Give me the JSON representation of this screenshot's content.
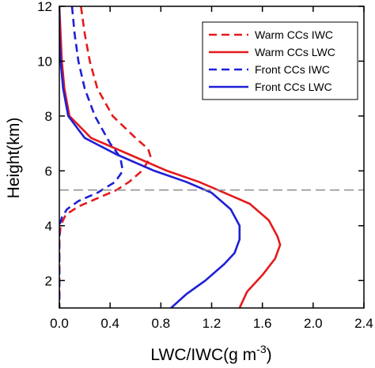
{
  "chart_data": {
    "type": "line",
    "xlabel": {
      "main": "LWC/IWC(g m",
      "sup": "-3",
      "close": ")"
    },
    "ylabel": "Height(km)",
    "xlim": [
      0,
      2.4
    ],
    "ylim": [
      1,
      12
    ],
    "x_ticks": [
      0.0,
      0.4,
      0.8,
      1.2,
      1.6,
      2.0,
      2.4
    ],
    "x_tick_labels": [
      "0.0",
      "0.4",
      "0.8",
      "1.2",
      "1.6",
      "2.0",
      "2.4"
    ],
    "y_ticks": [
      2,
      4,
      6,
      8,
      10,
      12
    ],
    "y_tick_labels": [
      "2",
      "4",
      "6",
      "8",
      "10",
      "12"
    ],
    "reference_line": {
      "y": 5.3,
      "style": "dashed",
      "color": "#8c8c8c"
    },
    "legend_position": "top-right",
    "series": [
      {
        "name": "Warm CCs IWC",
        "color": "#e41a1c",
        "style": "dashed",
        "points": [
          [
            0.17,
            12.0
          ],
          [
            0.2,
            11.0
          ],
          [
            0.24,
            10.0
          ],
          [
            0.3,
            9.0
          ],
          [
            0.42,
            8.0
          ],
          [
            0.6,
            7.2
          ],
          [
            0.7,
            6.8
          ],
          [
            0.72,
            6.5
          ],
          [
            0.65,
            6.0
          ],
          [
            0.55,
            5.6
          ],
          [
            0.45,
            5.3
          ],
          [
            0.3,
            5.0
          ],
          [
            0.15,
            4.7
          ],
          [
            0.05,
            4.4
          ],
          [
            0.01,
            4.0
          ],
          [
            0.0,
            3.5
          ],
          [
            0.0,
            1.0
          ]
        ]
      },
      {
        "name": "Warm CCs LWC",
        "color": "#e41a1c",
        "style": "solid",
        "points": [
          [
            0.0,
            12.0
          ],
          [
            0.01,
            11.0
          ],
          [
            0.02,
            10.0
          ],
          [
            0.04,
            9.0
          ],
          [
            0.08,
            8.0
          ],
          [
            0.25,
            7.2
          ],
          [
            0.55,
            6.6
          ],
          [
            0.85,
            6.0
          ],
          [
            1.1,
            5.6
          ],
          [
            1.3,
            5.2
          ],
          [
            1.5,
            4.8
          ],
          [
            1.65,
            4.2
          ],
          [
            1.72,
            3.6
          ],
          [
            1.74,
            3.3
          ],
          [
            1.7,
            2.8
          ],
          [
            1.6,
            2.2
          ],
          [
            1.48,
            1.6
          ],
          [
            1.42,
            1.0
          ]
        ]
      },
      {
        "name": "Front CCs IWC",
        "color": "#1f1fd6",
        "style": "dashed",
        "points": [
          [
            0.1,
            12.0
          ],
          [
            0.12,
            11.0
          ],
          [
            0.15,
            10.0
          ],
          [
            0.2,
            9.0
          ],
          [
            0.28,
            8.0
          ],
          [
            0.4,
            7.0
          ],
          [
            0.48,
            6.5
          ],
          [
            0.5,
            6.0
          ],
          [
            0.44,
            5.6
          ],
          [
            0.3,
            5.2
          ],
          [
            0.15,
            4.9
          ],
          [
            0.06,
            4.6
          ],
          [
            0.02,
            4.3
          ],
          [
            0.0,
            4.0
          ],
          [
            0.0,
            1.0
          ]
        ]
      },
      {
        "name": "Front CCs LWC",
        "color": "#1f1fd6",
        "style": "solid",
        "points": [
          [
            0.0,
            12.0
          ],
          [
            0.0,
            11.0
          ],
          [
            0.01,
            10.0
          ],
          [
            0.03,
            9.0
          ],
          [
            0.07,
            8.0
          ],
          [
            0.2,
            7.2
          ],
          [
            0.45,
            6.6
          ],
          [
            0.75,
            6.0
          ],
          [
            1.0,
            5.6
          ],
          [
            1.2,
            5.2
          ],
          [
            1.35,
            4.6
          ],
          [
            1.42,
            4.0
          ],
          [
            1.42,
            3.5
          ],
          [
            1.38,
            3.0
          ],
          [
            1.3,
            2.6
          ],
          [
            1.15,
            2.0
          ],
          [
            1.0,
            1.5
          ],
          [
            0.88,
            1.0
          ]
        ]
      }
    ]
  }
}
